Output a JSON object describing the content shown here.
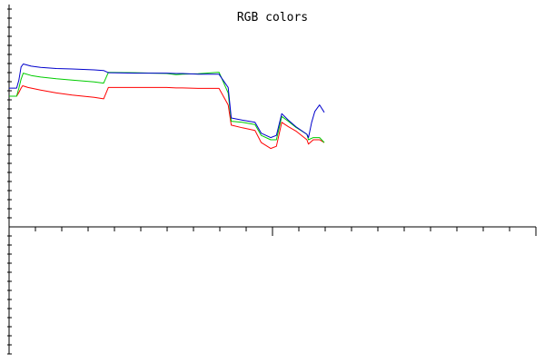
{
  "chart_data": {
    "type": "line",
    "title": "RGB colors",
    "xlabel": "",
    "ylabel": "",
    "grid": false,
    "legend": "none",
    "xlim": [
      0,
      100
    ],
    "ylim": [
      -100,
      100
    ],
    "series": [
      {
        "color": "#ff0000",
        "x": [
          0,
          2.4,
          3.1,
          3.8,
          4.3,
          6,
          10,
          15,
          20,
          27,
          30,
          31.5,
          40,
          50,
          53,
          55,
          60,
          66.6,
          69.5,
          70.5,
          74,
          78,
          80,
          83,
          84.8,
          86.5,
          88.6,
          91,
          94.5,
          95,
          96.5,
          98.5,
          100
        ],
        "y": [
          60,
          60,
          61.7,
          63.7,
          64.8,
          64,
          62.8,
          61.5,
          60.5,
          59.5,
          58.8,
          64,
          64,
          64,
          63.8,
          63.8,
          63.6,
          63.6,
          56,
          46.7,
          45.5,
          44.3,
          38.7,
          36,
          37,
          48,
          46,
          44,
          40,
          38,
          40,
          40,
          38.7
        ]
      },
      {
        "color": "#00cc00",
        "x": [
          0,
          2.4,
          3.1,
          3.8,
          4.5,
          7,
          10,
          15,
          20,
          27,
          30,
          31.5,
          40,
          50,
          53,
          55,
          60,
          66.6,
          69.5,
          70.5,
          74,
          78,
          80,
          83,
          84.8,
          86.5,
          88.6,
          91,
          94.5,
          95,
          96.5,
          98.5,
          100
        ],
        "y": [
          60,
          60,
          63.7,
          67.8,
          70.6,
          69.5,
          68.8,
          68,
          67.4,
          66.6,
          66,
          70.9,
          70.8,
          70.4,
          69.9,
          70.1,
          70.3,
          71,
          61.5,
          48.5,
          48,
          47,
          42,
          40,
          40,
          50.7,
          48.5,
          45.7,
          42.5,
          40,
          41,
          41,
          38.7
        ]
      },
      {
        "color": "#0000cc",
        "x": [
          0,
          2.4,
          3.1,
          3.8,
          4.5,
          7,
          10,
          15,
          20,
          27,
          30,
          31.5,
          40,
          50,
          53,
          55,
          60,
          66.6,
          69.5,
          70.5,
          74,
          78,
          80,
          83,
          84.8,
          86.5,
          88.6,
          91,
          94.5,
          95,
          96,
          97,
          98.5,
          100
        ],
        "y": [
          63.7,
          63.7,
          67.4,
          73.4,
          74.8,
          73.8,
          73.2,
          72.7,
          72.5,
          72.1,
          71.8,
          70.8,
          70.6,
          70.6,
          70.4,
          70.4,
          70.1,
          70.1,
          64,
          50,
          49,
          48,
          43,
          41,
          42,
          52,
          49,
          46,
          42.5,
          41,
          48,
          53,
          56,
          52.6
        ]
      }
    ]
  }
}
